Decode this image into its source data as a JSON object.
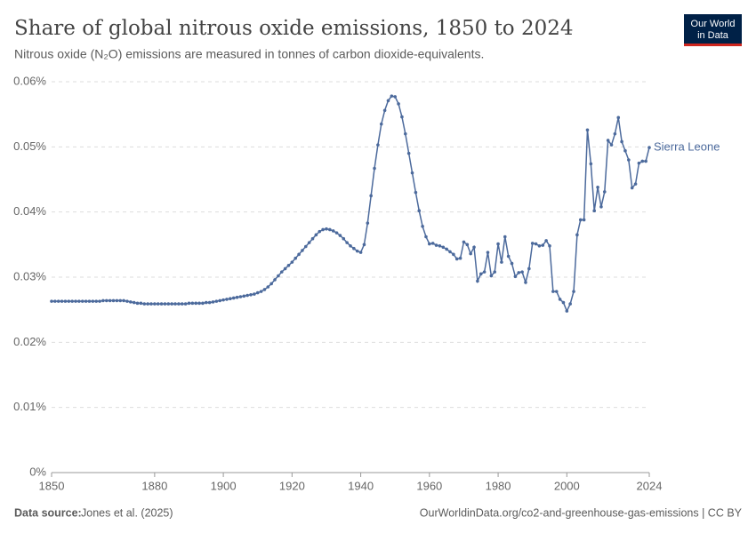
{
  "chart_data": {
    "type": "line",
    "title": "Share of global nitrous oxide emissions, 1850 to 2024",
    "subtitle": "Nitrous oxide (N₂O) emissions are measured in tonnes of carbon dioxide-equivalents.",
    "source_label": "Data source:",
    "source": "Jones et al. (2025)",
    "footer_right": "OurWorldinData.org/co2-and-greenhouse-gas-emissions | CC BY",
    "logo": [
      "Our World",
      "in Data"
    ],
    "grid": true,
    "xlim": [
      1850,
      2024
    ],
    "xticks": [
      1850,
      1880,
      1900,
      1920,
      1940,
      1960,
      1980,
      2000,
      2024
    ],
    "ylim": [
      0,
      0.06
    ],
    "yticks": [
      {
        "value": 0,
        "label": "0%"
      },
      {
        "value": 0.01,
        "label": "0.01%"
      },
      {
        "value": 0.02,
        "label": "0.02%"
      },
      {
        "value": 0.03,
        "label": "0.03%"
      },
      {
        "value": 0.04,
        "label": "0.04%"
      },
      {
        "value": 0.05,
        "label": "0.05%"
      },
      {
        "value": 0.06,
        "label": "0.06%"
      }
    ],
    "x": [
      1850,
      1851,
      1852,
      1853,
      1854,
      1855,
      1856,
      1857,
      1858,
      1859,
      1860,
      1861,
      1862,
      1863,
      1864,
      1865,
      1866,
      1867,
      1868,
      1869,
      1870,
      1871,
      1872,
      1873,
      1874,
      1875,
      1876,
      1877,
      1878,
      1879,
      1880,
      1881,
      1882,
      1883,
      1884,
      1885,
      1886,
      1887,
      1888,
      1889,
      1890,
      1891,
      1892,
      1893,
      1894,
      1895,
      1896,
      1897,
      1898,
      1899,
      1900,
      1901,
      1902,
      1903,
      1904,
      1905,
      1906,
      1907,
      1908,
      1909,
      1910,
      1911,
      1912,
      1913,
      1914,
      1915,
      1916,
      1917,
      1918,
      1919,
      1920,
      1921,
      1922,
      1923,
      1924,
      1925,
      1926,
      1927,
      1928,
      1929,
      1930,
      1931,
      1932,
      1933,
      1934,
      1935,
      1936,
      1937,
      1938,
      1939,
      1940,
      1941,
      1942,
      1943,
      1944,
      1945,
      1946,
      1947,
      1948,
      1949,
      1950,
      1951,
      1952,
      1953,
      1954,
      1955,
      1956,
      1957,
      1958,
      1959,
      1960,
      1961,
      1962,
      1963,
      1964,
      1965,
      1966,
      1967,
      1968,
      1969,
      1970,
      1971,
      1972,
      1973,
      1974,
      1975,
      1976,
      1977,
      1978,
      1979,
      1980,
      1981,
      1982,
      1983,
      1984,
      1985,
      1986,
      1987,
      1988,
      1989,
      1990,
      1991,
      1992,
      1993,
      1994,
      1995,
      1996,
      1997,
      1998,
      1999,
      2000,
      2001,
      2002,
      2003,
      2004,
      2005,
      2006,
      2007,
      2008,
      2009,
      2010,
      2011,
      2012,
      2013,
      2014,
      2015,
      2016,
      2017,
      2018,
      2019,
      2020,
      2021,
      2022,
      2023,
      2024
    ],
    "series": [
      {
        "name": "Sierra Leone",
        "color": "#4c6a9c",
        "values": [
          0.0263,
          0.0263,
          0.0263,
          0.0263,
          0.0263,
          0.0263,
          0.0263,
          0.0263,
          0.0263,
          0.0263,
          0.0263,
          0.0263,
          0.0263,
          0.0263,
          0.0263,
          0.0264,
          0.0264,
          0.0264,
          0.0264,
          0.0264,
          0.0264,
          0.0264,
          0.0263,
          0.0262,
          0.0261,
          0.026,
          0.026,
          0.0259,
          0.0259,
          0.0259,
          0.0259,
          0.0259,
          0.0259,
          0.0259,
          0.0259,
          0.0259,
          0.0259,
          0.0259,
          0.0259,
          0.0259,
          0.026,
          0.026,
          0.026,
          0.026,
          0.026,
          0.0261,
          0.0261,
          0.0262,
          0.0263,
          0.0264,
          0.0265,
          0.0266,
          0.0267,
          0.0268,
          0.0269,
          0.027,
          0.0271,
          0.0272,
          0.0273,
          0.0274,
          0.0276,
          0.0278,
          0.0281,
          0.0285,
          0.029,
          0.0296,
          0.0302,
          0.0308,
          0.0313,
          0.0318,
          0.0323,
          0.0329,
          0.0335,
          0.0341,
          0.0347,
          0.0353,
          0.0359,
          0.0365,
          0.037,
          0.0373,
          0.0374,
          0.0373,
          0.0371,
          0.0368,
          0.0364,
          0.0359,
          0.0353,
          0.0348,
          0.0344,
          0.034,
          0.0338,
          0.035,
          0.0383,
          0.0425,
          0.0467,
          0.0503,
          0.0535,
          0.0556,
          0.0571,
          0.0578,
          0.0577,
          0.0566,
          0.0546,
          0.052,
          0.049,
          0.046,
          0.043,
          0.0402,
          0.0378,
          0.0362,
          0.0351,
          0.0352,
          0.0349,
          0.0348,
          0.0346,
          0.0343,
          0.0339,
          0.0335,
          0.0328,
          0.0329,
          0.0354,
          0.035,
          0.0336,
          0.0346,
          0.0294,
          0.0305,
          0.0308,
          0.0338,
          0.0302,
          0.0308,
          0.0351,
          0.0323,
          0.0362,
          0.0332,
          0.0321,
          0.0301,
          0.0307,
          0.0308,
          0.0292,
          0.0313,
          0.0352,
          0.0351,
          0.0348,
          0.0349,
          0.0356,
          0.0348,
          0.0278,
          0.0278,
          0.0266,
          0.0261,
          0.0248,
          0.0259,
          0.0278,
          0.0365,
          0.0388,
          0.0388,
          0.0526,
          0.0474,
          0.0402,
          0.0438,
          0.0408,
          0.0431,
          0.051,
          0.0503,
          0.052,
          0.0545,
          0.0508,
          0.0494,
          0.048,
          0.0437,
          0.0443,
          0.0475,
          0.0478,
          0.0478,
          0.0499
        ]
      }
    ]
  }
}
